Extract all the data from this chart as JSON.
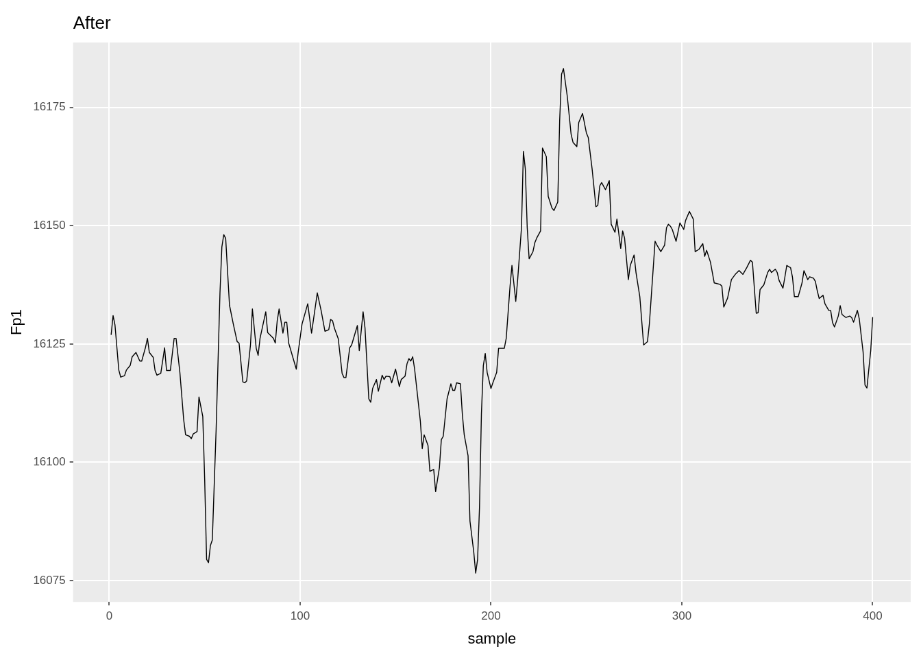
{
  "chart_data": {
    "type": "line",
    "title": "After",
    "xlabel": "sample",
    "ylabel": "Fp1",
    "xlim": [
      -18.95,
      419.95
    ],
    "xticks": [
      0,
      100,
      200,
      300,
      400
    ],
    "ylim": [
      16070.5,
      16188.7
    ],
    "yticks": [
      16075,
      16100,
      16125,
      16150,
      16175
    ],
    "grid": true,
    "legend": false,
    "marker": "none",
    "line_style": "solid",
    "series": [
      {
        "color": "#000000",
        "x": [
          1,
          2,
          3,
          5,
          6,
          8,
          9,
          11,
          12,
          14,
          16,
          17,
          19,
          20,
          21,
          23,
          24,
          25,
          27,
          29,
          30,
          32,
          34,
          35,
          37,
          39,
          40,
          42,
          43,
          44,
          46,
          47,
          49,
          50,
          51,
          52,
          53,
          54,
          56,
          58,
          59,
          60,
          61,
          63,
          65,
          67,
          68,
          70,
          71,
          72,
          74,
          75,
          77,
          78,
          79,
          82,
          83,
          86,
          87,
          88,
          89,
          91,
          92,
          93,
          94,
          98,
          99,
          101,
          104,
          106,
          109,
          111,
          113,
          115,
          116,
          117,
          118,
          120,
          122,
          123,
          124,
          126,
          127,
          130,
          131,
          133,
          134,
          136,
          137,
          138,
          140,
          141,
          143,
          144,
          145,
          147,
          148,
          150,
          152,
          153,
          155,
          156,
          157,
          158,
          159,
          160,
          163,
          164,
          165,
          167,
          168,
          170,
          171,
          173,
          174,
          175,
          177,
          179,
          180,
          181,
          182,
          184,
          185,
          186,
          188,
          189,
          191,
          192,
          193,
          194,
          195,
          196,
          197,
          198,
          200,
          201,
          203,
          204,
          206,
          207,
          208,
          210,
          211,
          213,
          214,
          216,
          217,
          218,
          219,
          220,
          222,
          223,
          224,
          226,
          227,
          229,
          230,
          232,
          233,
          235,
          236,
          237,
          238,
          240,
          242,
          243,
          245,
          246,
          248,
          250,
          251,
          253,
          255,
          256,
          257,
          258,
          260,
          262,
          263,
          265,
          266,
          268,
          269,
          270,
          272,
          273,
          275,
          276,
          278,
          280,
          282,
          283,
          286,
          287,
          289,
          291,
          292,
          293,
          294,
          295,
          297,
          299,
          301,
          302,
          304,
          306,
          307,
          309,
          311,
          312,
          313,
          315,
          317,
          320,
          321,
          322,
          324,
          326,
          328,
          330,
          332,
          334,
          336,
          337,
          339,
          340,
          341,
          343,
          345,
          346,
          347,
          349,
          350,
          351,
          353,
          354,
          355,
          357,
          358,
          359,
          361,
          363,
          364,
          366,
          367,
          369,
          370,
          371,
          372,
          374,
          375,
          377,
          378,
          379,
          380,
          382,
          383,
          384,
          386,
          388,
          389,
          390,
          392,
          393,
          395,
          396,
          397,
          398,
          399,
          400
        ],
        "values": [
          16127,
          16131,
          16129,
          16119.5,
          16118,
          16118.3,
          16119.5,
          16120.5,
          16122.3,
          16123.2,
          16121.4,
          16121.4,
          16124.3,
          16126.2,
          16123.2,
          16122.2,
          16119.4,
          16118.4,
          16118.8,
          16124.2,
          16119.4,
          16119.4,
          16126.2,
          16126.2,
          16119,
          16109,
          16105.8,
          16105.5,
          16105,
          16106,
          16106.5,
          16113.8,
          16109.7,
          16096.3,
          16079.5,
          16078.8,
          16082.4,
          16083.6,
          16107,
          16135.7,
          16145.5,
          16148.1,
          16147.3,
          16133.2,
          16129.2,
          16125.5,
          16125.2,
          16117,
          16116.8,
          16117.2,
          16124.8,
          16132.4,
          16124.1,
          16122.6,
          16126.2,
          16131.8,
          16127.4,
          16126.2,
          16125.2,
          16129.9,
          16132.4,
          16127.3,
          16129.6,
          16129.6,
          16125.2,
          16119.7,
          16123.3,
          16129.2,
          16133.5,
          16127.3,
          16135.8,
          16132.1,
          16127.7,
          16128,
          16130.2,
          16129.9,
          16128.3,
          16126.1,
          16118.8,
          16117.9,
          16117.9,
          16124.2,
          16124.8,
          16128.9,
          16123.6,
          16131.8,
          16128.4,
          16113.4,
          16112.7,
          16115.6,
          16117.5,
          16115,
          16118.4,
          16117.5,
          16118.2,
          16118.1,
          16116.8,
          16119.7,
          16116,
          16117.5,
          16118.2,
          16120.8,
          16121.9,
          16121.4,
          16122.3,
          16119.7,
          16108.7,
          16102.9,
          16105.8,
          16103.6,
          16098.1,
          16098.5,
          16093.8,
          16098.9,
          16104.8,
          16105.5,
          16113.4,
          16116.6,
          16115.2,
          16115.2,
          16116.8,
          16116.6,
          16110.2,
          16105.8,
          16101.4,
          16087.6,
          16081,
          16076.6,
          16079.5,
          16090.5,
          16110.2,
          16120.4,
          16123,
          16119,
          16115.6,
          16116.8,
          16119,
          16124.1,
          16124.1,
          16124.1,
          16126.2,
          16137.2,
          16141.6,
          16134,
          16138.6,
          16149.6,
          16165.7,
          16162,
          16149.6,
          16143,
          16144.5,
          16146.4,
          16147.4,
          16148.9,
          16166.4,
          16164.6,
          16156.2,
          16153.7,
          16153.2,
          16155,
          16172.2,
          16182,
          16183.2,
          16177.3,
          16169.3,
          16167.6,
          16166.7,
          16171.8,
          16173.7,
          16169.6,
          16168.6,
          16162,
          16154,
          16154.3,
          16158.4,
          16159.1,
          16157.6,
          16159.5,
          16150.3,
          16148.6,
          16151.4,
          16145.2,
          16148.9,
          16147.4,
          16138.6,
          16141.6,
          16143.8,
          16140.1,
          16135,
          16124.8,
          16125.5,
          16129.2,
          16146.7,
          16145.9,
          16144.5,
          16145.9,
          16149.6,
          16150.3,
          16149.9,
          16149.2,
          16146.7,
          16150.6,
          16149.2,
          16151.1,
          16153,
          16151.4,
          16144.5,
          16145,
          16146.2,
          16143.5,
          16144.8,
          16142.3,
          16137.9,
          16137.6,
          16137.2,
          16132.8,
          16134.7,
          16138.6,
          16139.7,
          16140.5,
          16139.7,
          16141.1,
          16142.7,
          16142.3,
          16131.5,
          16131.6,
          16136.5,
          16137.5,
          16140.1,
          16140.8,
          16140.1,
          16140.8,
          16140.1,
          16138.4,
          16136.8,
          16139.1,
          16141.6,
          16141.1,
          16139.1,
          16135,
          16135,
          16137.9,
          16140.5,
          16138.6,
          16139.2,
          16138.9,
          16138.2,
          16136.2,
          16134.6,
          16135.3,
          16133.5,
          16132.1,
          16132.1,
          16129.5,
          16128.6,
          16130.9,
          16133.1,
          16131.2,
          16130.6,
          16130.9,
          16130.6,
          16129.6,
          16132.1,
          16130.3,
          16123.3,
          16116.3,
          16115.7,
          16119.7,
          16123.6,
          16130.6
        ]
      }
    ]
  }
}
